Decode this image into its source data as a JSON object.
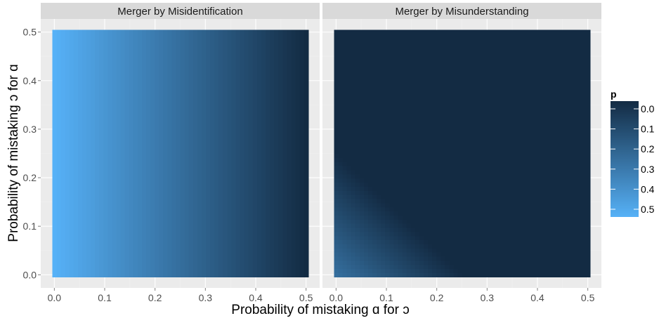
{
  "chart_data": {
    "type": "heatmap",
    "facets": [
      {
        "title": "Merger by Misidentification",
        "model": "misidentification"
      },
      {
        "title": "Merger by Misunderstanding",
        "model": "misunderstanding"
      }
    ],
    "xlabel": "Probability of mistaking ɑ for ɔ",
    "ylabel": "Probability of mistaking ɔ for ɑ",
    "xlim": [
      0,
      0.5
    ],
    "ylim": [
      0,
      0.5
    ],
    "x_ticks": [
      "0.0",
      "0.1",
      "0.2",
      "0.3",
      "0.4",
      "0.5"
    ],
    "y_ticks": [
      "0.0",
      "0.1",
      "0.2",
      "0.3",
      "0.4",
      "0.5"
    ],
    "fill_variable": "p",
    "description_of_values": [
      {
        "facet": "Merger by Misidentification",
        "p_at_x": [
          [
            0.0,
            0.5
          ],
          [
            0.1,
            0.4
          ],
          [
            0.2,
            0.3
          ],
          [
            0.3,
            0.2
          ],
          [
            0.4,
            0.1
          ],
          [
            0.5,
            0.0
          ]
        ],
        "note": "p depends only on x"
      },
      {
        "facet": "Merger by Misunderstanding",
        "p_at_origin": 0.25,
        "p_zero_when_x_plus_y_at_least": 0.25
      }
    ],
    "legend": {
      "title": "p",
      "position": "right",
      "entries": [
        {
          "label": "0.0",
          "value": 0.0
        },
        {
          "label": "0.1",
          "value": 0.1
        },
        {
          "label": "0.2",
          "value": 0.2
        },
        {
          "label": "0.3",
          "value": 0.3
        },
        {
          "label": "0.4",
          "value": 0.4
        },
        {
          "label": "0.5",
          "value": 0.5
        }
      ],
      "colors": {
        "low": "#132B43",
        "high": "#56B1F7"
      }
    },
    "grid": true,
    "panel_background": "#EBEBEB",
    "strip_background": "#D9D9D9"
  }
}
